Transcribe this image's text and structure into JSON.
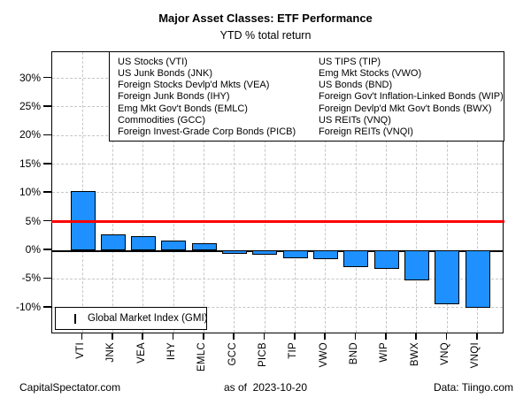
{
  "chart_data": {
    "type": "bar",
    "title": "Major Asset Classes: ETF Performance",
    "subtitle": "YTD % total return",
    "categories": [
      "VTI",
      "JNK",
      "VEA",
      "IHY",
      "EMLC",
      "GCC",
      "PICB",
      "TIP",
      "VWO",
      "BND",
      "WIP",
      "BWX",
      "VNQ",
      "VNQI"
    ],
    "values": [
      10.3,
      2.8,
      2.4,
      1.7,
      1.2,
      -0.6,
      -0.8,
      -1.4,
      -1.5,
      -3.0,
      -3.2,
      -5.3,
      -9.4,
      -10.0
    ],
    "y_ticks": [
      30,
      25,
      20,
      15,
      10,
      5,
      0,
      -5,
      -10
    ],
    "y_tick_suffix": "%",
    "ylim": [
      -14.7,
      34.6
    ],
    "grid": "dashed-gray",
    "bar_color": "#1E90FF",
    "bar_border_color": "#000000",
    "reference_line": {
      "value": 5.0,
      "color": "#FF0000",
      "label": "Global Market Index (GMI)",
      "legend_position": "bottom-left"
    },
    "asset_legend": {
      "position": "top-right",
      "left_column": [
        "US Stocks (VTI)",
        "US Junk Bonds (JNK)",
        "Foreign Stocks Devlp'd Mkts (VEA)",
        "Foreign Junk Bonds (IHY)",
        "Emg Mkt Gov't Bonds (EMLC)",
        "Commodities (GCC)",
        "Foreign Invest-Grade Corp Bonds (PICB)"
      ],
      "right_column": [
        "US TIPS (TIP)",
        "Emg Mkt Stocks (VWO)",
        "US Bonds (BND)",
        "Foreign Gov't Inflation-Linked Bonds (WIP)",
        "Foreign Devlp'd Mkt Gov't Bonds (BWX)",
        "US REITs (VNQ)",
        "Foreign REITs (VNQI)"
      ]
    }
  },
  "footer": {
    "left": "CapitalSpectator.com",
    "center": "as of  2023-10-20",
    "right": "Data: Tiingo.com"
  }
}
